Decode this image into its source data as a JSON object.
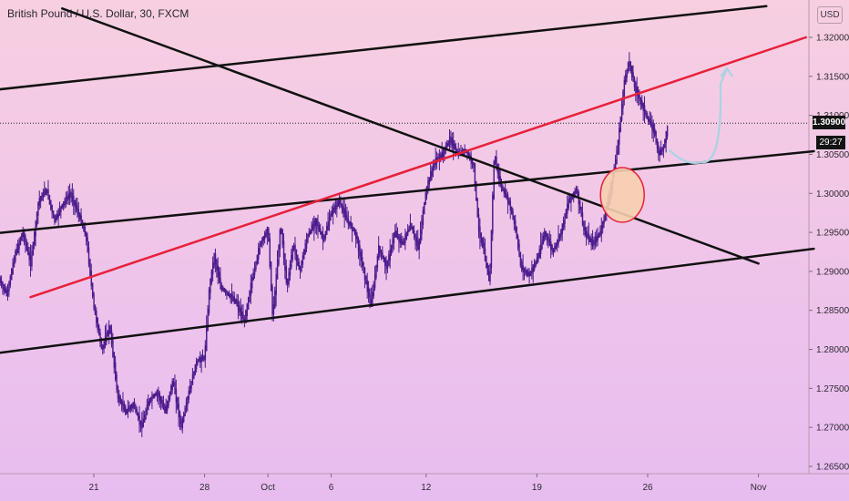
{
  "header": {
    "title": "British Pound / U.S. Dollar, 30, FXCM",
    "currency_button": "USD"
  },
  "badges": {
    "last_price": "1.30900",
    "countdown": "29:27"
  },
  "colors": {
    "candle": "#4a1a8c",
    "trendline_black": "#111111",
    "trendline_red": "#e8203a",
    "arrow": "#a9d3e4",
    "circle_fill": "#f7cfae",
    "circle_stroke": "#e8203a"
  },
  "chart_data": {
    "type": "line",
    "title": "British Pound / U.S. Dollar, 30, FXCM",
    "xlabel": "",
    "ylabel": "",
    "ylim": [
      1.265,
      1.323
    ],
    "y_ticks": [
      "1.32000",
      "1.31500",
      "1.31000",
      "1.30500",
      "1.30000",
      "1.29500",
      "1.29000",
      "1.28500",
      "1.28000",
      "1.27500",
      "1.27000",
      "1.26500"
    ],
    "x_ticks": [
      {
        "label": "21",
        "t": 21
      },
      {
        "label": "28",
        "t": 28
      },
      {
        "label": "Oct",
        "t": 32
      },
      {
        "label": "6",
        "t": 36
      },
      {
        "label": "12",
        "t": 42
      },
      {
        "label": "19",
        "t": 49
      },
      {
        "label": "26",
        "t": 56
      },
      {
        "label": "Nov",
        "t": 63
      }
    ],
    "price_path": [
      [
        15.0,
        1.289
      ],
      [
        15.5,
        1.287
      ],
      [
        16.0,
        1.292
      ],
      [
        16.5,
        1.295
      ],
      [
        17.0,
        1.291
      ],
      [
        17.5,
        1.299
      ],
      [
        18.0,
        1.3005
      ],
      [
        18.5,
        1.2965
      ],
      [
        19.0,
        1.2985
      ],
      [
        19.5,
        1.3
      ],
      [
        20.0,
        1.2975
      ],
      [
        20.5,
        1.2945
      ],
      [
        21.0,
        1.2855
      ],
      [
        21.5,
        1.28
      ],
      [
        22.0,
        1.283
      ],
      [
        22.5,
        1.274
      ],
      [
        23.0,
        1.272
      ],
      [
        23.5,
        1.273
      ],
      [
        24.0,
        1.27
      ],
      [
        24.5,
        1.2735
      ],
      [
        25.0,
        1.2745
      ],
      [
        25.5,
        1.272
      ],
      [
        26.0,
        1.276
      ],
      [
        26.5,
        1.27
      ],
      [
        27.0,
        1.2745
      ],
      [
        27.5,
        1.2785
      ],
      [
        28.0,
        1.279
      ],
      [
        28.3,
        1.288
      ],
      [
        28.6,
        1.292
      ],
      [
        29.0,
        1.288
      ],
      [
        29.5,
        1.287
      ],
      [
        30.0,
        1.286
      ],
      [
        30.5,
        1.2835
      ],
      [
        31.0,
        1.289
      ],
      [
        31.5,
        1.2935
      ],
      [
        32.0,
        1.2955
      ],
      [
        32.3,
        1.284
      ],
      [
        32.8,
        1.296
      ],
      [
        33.2,
        1.288
      ],
      [
        33.6,
        1.2935
      ],
      [
        34.0,
        1.29
      ],
      [
        34.5,
        1.2945
      ],
      [
        35.0,
        1.2965
      ],
      [
        35.5,
        1.294
      ],
      [
        36.0,
        1.2975
      ],
      [
        36.5,
        1.299
      ],
      [
        37.0,
        1.2965
      ],
      [
        37.5,
        1.295
      ],
      [
        38.0,
        1.2905
      ],
      [
        38.5,
        1.2855
      ],
      [
        39.0,
        1.293
      ],
      [
        39.5,
        1.2905
      ],
      [
        40.0,
        1.295
      ],
      [
        40.5,
        1.2935
      ],
      [
        41.0,
        1.296
      ],
      [
        41.5,
        1.293
      ],
      [
        42.0,
        1.3005
      ],
      [
        42.5,
        1.304
      ],
      [
        43.0,
        1.305
      ],
      [
        43.5,
        1.307
      ],
      [
        44.0,
        1.305
      ],
      [
        44.5,
        1.3055
      ],
      [
        45.0,
        1.3035
      ],
      [
        45.3,
        1.2955
      ],
      [
        45.6,
        1.293
      ],
      [
        46.0,
        1.2885
      ],
      [
        46.3,
        1.305
      ],
      [
        46.7,
        1.301
      ],
      [
        47.2,
        1.299
      ],
      [
        47.6,
        1.296
      ],
      [
        48.0,
        1.2905
      ],
      [
        48.5,
        1.2895
      ],
      [
        49.0,
        1.2915
      ],
      [
        49.5,
        1.295
      ],
      [
        50.0,
        1.2925
      ],
      [
        50.5,
        1.295
      ],
      [
        51.0,
        1.299
      ],
      [
        51.5,
        1.3005
      ],
      [
        52.0,
        1.295
      ],
      [
        52.5,
        1.2935
      ],
      [
        53.0,
        1.295
      ],
      [
        53.5,
        1.299
      ],
      [
        54.0,
        1.3045
      ],
      [
        54.2,
        1.308
      ],
      [
        54.5,
        1.314
      ],
      [
        54.8,
        1.317
      ],
      [
        55.2,
        1.3135
      ],
      [
        55.6,
        1.3115
      ],
      [
        56.0,
        1.3095
      ],
      [
        56.4,
        1.308
      ],
      [
        56.7,
        1.305
      ],
      [
        57.0,
        1.306
      ],
      [
        57.3,
        1.309
      ]
    ],
    "trendlines": [
      {
        "color": "black",
        "points": [
          [
            9.0,
            1.312
          ],
          [
            63.5,
            1.324
          ]
        ]
      },
      {
        "color": "black",
        "points": [
          [
            19.0,
            1.3237
          ],
          [
            63.0,
            1.291
          ]
        ]
      },
      {
        "color": "black",
        "points": [
          [
            9.0,
            1.2937
          ],
          [
            66.5,
            1.3054
          ]
        ]
      },
      {
        "color": "black",
        "points": [
          [
            9.0,
            1.278
          ],
          [
            66.5,
            1.2929
          ]
        ]
      },
      {
        "color": "red",
        "points": [
          [
            17.0,
            1.2867
          ],
          [
            66.0,
            1.32
          ]
        ]
      }
    ],
    "last_price": 1.309,
    "highlight_circle": {
      "t": 54.4,
      "price": 1.2998
    },
    "projection_arrow": [
      [
        57.4,
        1.3055
      ],
      [
        58.4,
        1.3035
      ],
      [
        59.4,
        1.304
      ],
      [
        60.6,
        1.314
      ],
      [
        61.0,
        1.316
      ]
    ]
  }
}
